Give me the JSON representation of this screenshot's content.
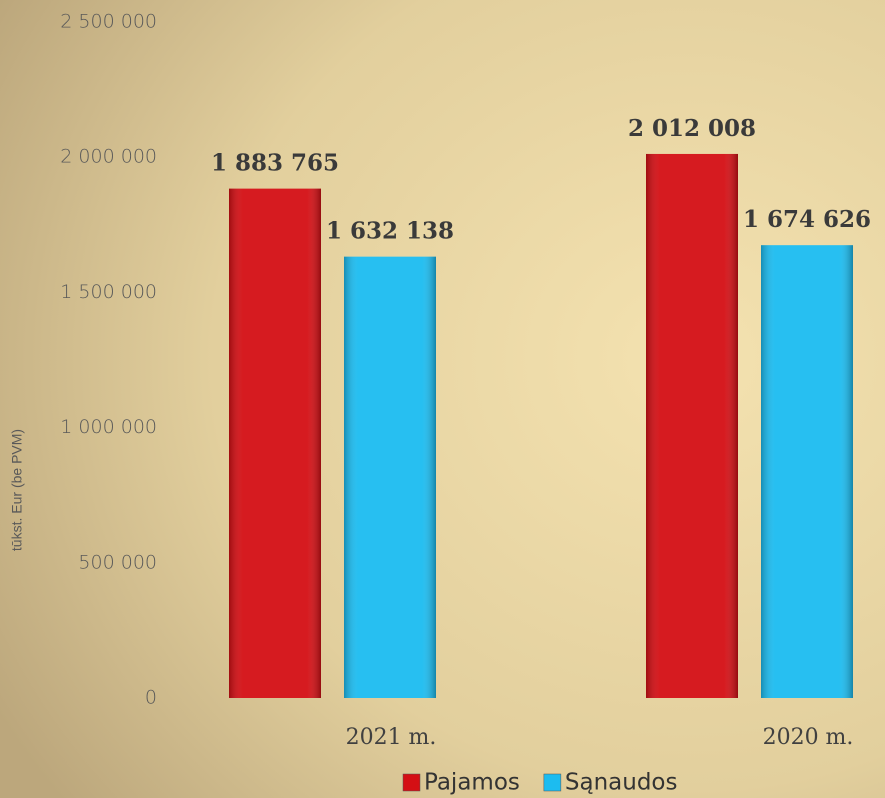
{
  "chart_data": {
    "type": "bar",
    "y_axis_label": "tūkst. Eur (be PVM)",
    "categories": [
      "2021 m.",
      "2020 m."
    ],
    "series": [
      {
        "name": "Pajamos",
        "color": "#d40f14",
        "values": [
          1883765,
          2012008
        ],
        "value_labels": [
          "1 883 765",
          "2 012 008"
        ]
      },
      {
        "name": "Sąnaudos",
        "color": "#1cbcf0",
        "values": [
          1632138,
          1674626
        ],
        "value_labels": [
          "1 632 138",
          "1 674 626"
        ]
      }
    ],
    "ylim": [
      0,
      2500000
    ],
    "yticks": [
      0,
      {
        "value": 500000,
        "label": "500 000"
      },
      {
        "value": 1000000,
        "label": "1 000 000"
      },
      {
        "value": 1500000,
        "label": "1 500 000"
      },
      {
        "value": 2000000,
        "label": "2 000 000"
      },
      {
        "value": 2500000,
        "label": "2 500 000"
      }
    ],
    "legend": "bottom",
    "grid": false
  }
}
